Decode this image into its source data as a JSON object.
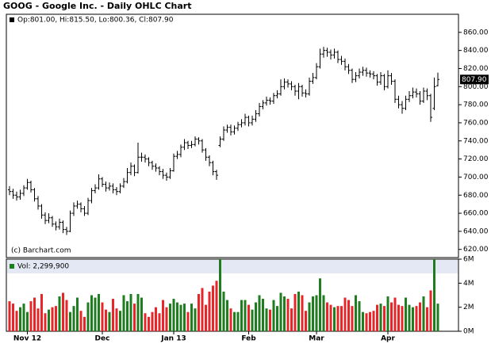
{
  "chart_data": {
    "type": "ohlc",
    "title": "GOOG - Google Inc. - Daily OHLC Chart",
    "ohlc_legend": "Op:801.00, Hi:815.50, Lo:800.36, Cl:807.90",
    "last_label": "807.90",
    "credit": "(c) Barchart.com",
    "color": "#000000",
    "up_color": "#1e7d1e",
    "down_color": "#e8262a",
    "categories": [
      null,
      null,
      null,
      null,
      null,
      "Nov 12",
      null,
      null,
      null,
      null,
      null,
      null,
      null,
      null,
      null,
      null,
      null,
      null,
      null,
      null,
      null,
      null,
      null,
      null,
      null,
      null,
      "Dec",
      null,
      null,
      null,
      null,
      null,
      null,
      null,
      null,
      null,
      null,
      null,
      null,
      null,
      null,
      null,
      null,
      null,
      null,
      null,
      "Jan 13",
      null,
      null,
      null,
      null,
      null,
      null,
      null,
      null,
      null,
      null,
      null,
      null,
      null,
      null,
      null,
      null,
      null,
      null,
      null,
      null,
      "Feb",
      null,
      null,
      null,
      null,
      null,
      null,
      null,
      null,
      null,
      null,
      null,
      null,
      null,
      null,
      null,
      null,
      null,
      null,
      "Mar",
      null,
      null,
      null,
      null,
      null,
      null,
      null,
      null,
      null,
      null,
      null,
      null,
      null,
      null,
      null,
      null,
      null,
      null,
      null,
      "Apr",
      null,
      null,
      null,
      null,
      null,
      null,
      null,
      null,
      null,
      null,
      null,
      null,
      null,
      null
    ],
    "open": [
      686,
      684,
      680,
      678,
      682,
      688,
      694,
      686,
      676,
      668,
      658,
      652,
      655,
      648,
      645,
      650,
      642,
      640,
      660,
      668,
      670,
      665,
      660,
      674,
      685,
      688,
      698,
      692,
      688,
      690,
      686,
      684,
      690,
      695,
      705,
      712,
      705,
      722,
      722,
      720,
      716,
      712,
      710,
      706,
      702,
      700,
      707,
      723,
      725,
      733,
      738,
      735,
      736,
      742,
      740,
      730,
      722,
      716,
      706,
      735,
      742,
      752,
      755,
      750,
      754,
      758,
      760,
      766,
      760,
      764,
      770,
      778,
      782,
      785,
      784,
      790,
      792,
      800,
      805,
      803,
      800,
      795,
      800,
      793,
      792,
      806,
      810,
      822,
      836,
      840,
      838,
      835,
      838,
      830,
      828,
      822,
      818,
      808,
      812,
      816,
      818,
      815,
      814,
      812,
      805,
      812,
      800,
      812,
      806,
      786,
      780,
      776,
      786,
      790,
      794,
      792,
      784,
      795,
      790,
      776,
      801.0
    ],
    "high": [
      690,
      687,
      684,
      686,
      691,
      698,
      696,
      688,
      679,
      670,
      661,
      660,
      657,
      651,
      654,
      652,
      645,
      663,
      672,
      674,
      672,
      668,
      677,
      688,
      692,
      703,
      700,
      695,
      694,
      693,
      689,
      693,
      699,
      710,
      716,
      714,
      738,
      727,
      725,
      722,
      718,
      715,
      712,
      709,
      705,
      710,
      726,
      729,
      736,
      742,
      740,
      740,
      745,
      744,
      742,
      732,
      724,
      718,
      708,
      745,
      756,
      758,
      758,
      757,
      761,
      764,
      770,
      768,
      768,
      774,
      782,
      785,
      789,
      788,
      793,
      796,
      808,
      809,
      808,
      806,
      802,
      804,
      802,
      797,
      810,
      815,
      826,
      842,
      844,
      843,
      841,
      842,
      840,
      834,
      831,
      825,
      820,
      816,
      820,
      822,
      821,
      818,
      817,
      814,
      816,
      814,
      818,
      815,
      808,
      790,
      784,
      790,
      795,
      799,
      798,
      795,
      799,
      798,
      792,
      810,
      815.5
    ],
    "low": [
      680,
      676,
      674,
      675,
      679,
      686,
      683,
      673,
      664,
      654,
      648,
      649,
      645,
      641,
      642,
      638,
      636,
      639,
      657,
      665,
      661,
      657,
      658,
      671,
      682,
      686,
      689,
      684,
      685,
      682,
      680,
      682,
      688,
      693,
      702,
      701,
      704,
      717,
      716,
      712,
      708,
      706,
      702,
      698,
      696,
      698,
      706,
      720,
      722,
      730,
      731,
      732,
      734,
      736,
      727,
      718,
      712,
      702,
      697,
      733,
      740,
      749,
      746,
      747,
      751,
      755,
      757,
      756,
      757,
      761,
      767,
      775,
      779,
      780,
      781,
      787,
      790,
      797,
      799,
      796,
      790,
      786,
      789,
      788,
      790,
      803,
      808,
      820,
      832,
      833,
      830,
      831,
      826,
      824,
      818,
      814,
      804,
      805,
      809,
      812,
      811,
      810,
      808,
      801,
      802,
      796,
      798,
      802,
      782,
      776,
      770,
      774,
      783,
      787,
      788,
      780,
      782,
      785,
      761,
      774,
      800.36
    ],
    "close": [
      684,
      680,
      678,
      682,
      688,
      694,
      686,
      676,
      668,
      658,
      652,
      655,
      648,
      645,
      650,
      642,
      640,
      660,
      668,
      670,
      665,
      660,
      674,
      685,
      688,
      698,
      692,
      688,
      690,
      686,
      684,
      690,
      695,
      705,
      712,
      705,
      722,
      722,
      720,
      716,
      712,
      710,
      706,
      702,
      700,
      707,
      723,
      725,
      733,
      738,
      735,
      736,
      742,
      740,
      730,
      722,
      716,
      706,
      702,
      742,
      752,
      755,
      750,
      754,
      758,
      760,
      766,
      760,
      764,
      770,
      778,
      782,
      785,
      784,
      790,
      792,
      800,
      805,
      803,
      800,
      795,
      800,
      793,
      792,
      806,
      810,
      822,
      836,
      840,
      838,
      835,
      838,
      830,
      828,
      822,
      818,
      808,
      812,
      816,
      818,
      815,
      814,
      812,
      805,
      812,
      800,
      812,
      806,
      786,
      780,
      776,
      786,
      790,
      794,
      792,
      784,
      795,
      790,
      766,
      800,
      807.9
    ],
    "ylim": [
      611,
      880
    ],
    "yticks": [
      {
        "value": 620,
        "label": "620.00"
      },
      {
        "value": 640,
        "label": "640.00"
      },
      {
        "value": 660,
        "label": "660.00"
      },
      {
        "value": 680,
        "label": "680.00"
      },
      {
        "value": 700,
        "label": "700.00"
      },
      {
        "value": 720,
        "label": "720.00"
      },
      {
        "value": 740,
        "label": "740.00"
      },
      {
        "value": 760,
        "label": "760.00"
      },
      {
        "value": 780,
        "label": "780.00"
      },
      {
        "value": 800,
        "label": "800.00"
      },
      {
        "value": 820,
        "label": "820.00"
      },
      {
        "value": 840,
        "label": "840.00"
      },
      {
        "value": 860,
        "label": "860.00"
      }
    ],
    "volume": {
      "legend": "Vol: 2,299,900",
      "values": [
        2500000,
        2300000,
        1700000,
        2000000,
        2300000,
        1600000,
        2500000,
        2800000,
        1900000,
        3100000,
        1500000,
        1800000,
        2000000,
        2100000,
        2900000,
        3200000,
        2600000,
        1600000,
        2100000,
        2800000,
        1700000,
        1200000,
        2400000,
        3000000,
        2800000,
        3100000,
        2400000,
        1800000,
        1600000,
        2700000,
        1900000,
        1700000,
        3000000,
        2500000,
        3100000,
        2300000,
        3100000,
        2800000,
        1500000,
        1200000,
        1600000,
        2000000,
        1500000,
        2600000,
        2000000,
        2300000,
        2700000,
        2400000,
        2200000,
        2300000,
        1600000,
        2300000,
        1900000,
        3100000,
        3600000,
        2200000,
        3300000,
        3800000,
        4200000,
        6000000,
        3300000,
        2600000,
        1900000,
        1600000,
        1600000,
        2600000,
        2600000,
        2200000,
        1800000,
        2400000,
        3000000,
        2700000,
        1900000,
        1800000,
        2600000,
        2100000,
        3200000,
        2900000,
        2700000,
        1900000,
        3100000,
        3300000,
        3000000,
        1700000,
        2400000,
        2900000,
        3000000,
        4400000,
        3000000,
        2400000,
        2200000,
        2000000,
        2100000,
        2100000,
        2800000,
        2600000,
        2100000,
        3000000,
        2500000,
        1600000,
        1500000,
        1600000,
        1700000,
        2200000,
        2300000,
        2100000,
        2900000,
        2400000,
        2800000,
        2200000,
        2100000,
        2800000,
        2200000,
        2000000,
        2100000,
        2400000,
        2900000,
        2000000,
        3400000,
        6000000,
        2299900
      ],
      "ylim": [
        0,
        6000000
      ],
      "yticks": [
        {
          "value": 0,
          "label": "0M"
        },
        {
          "value": 2000000,
          "label": "2M"
        },
        {
          "value": 4000000,
          "label": "4M"
        },
        {
          "value": 6000000,
          "label": "6M"
        }
      ]
    }
  }
}
